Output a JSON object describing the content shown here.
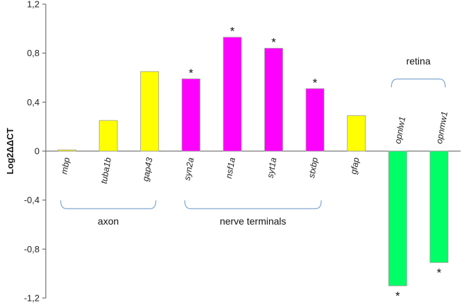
{
  "chart_data": {
    "type": "bar",
    "ylabel": "Log2ΔΔCT",
    "xlabel": "",
    "ylim": [
      -1.2,
      1.2
    ],
    "yticks": [
      -1.2,
      -0.8,
      -0.4,
      0,
      0.4,
      0.8,
      1.2
    ],
    "ytick_labels": [
      "-1,2",
      "-0,8",
      "-0,4",
      "0",
      "0,4",
      "0,8",
      "1,2"
    ],
    "grid": false,
    "categories": [
      "mbp",
      "tuba1b",
      "gap43",
      "syn2a",
      "nsf1a",
      "syt1a",
      "stxbp",
      "gfap",
      "opnlw1",
      "opnmw1"
    ],
    "values": [
      0.01,
      0.25,
      0.65,
      0.59,
      0.93,
      0.84,
      0.51,
      0.29,
      -1.1,
      -0.91
    ],
    "bar_colors": [
      "#FFFF00",
      "#FFFF00",
      "#FFFF00",
      "#FF00FF",
      "#FF00FF",
      "#FF00FF",
      "#FF00FF",
      "#FFFF00",
      "#00FF66",
      "#00FF66"
    ],
    "significant": [
      false,
      false,
      false,
      true,
      true,
      true,
      true,
      false,
      true,
      true
    ],
    "significance_marker": "*",
    "groups": [
      {
        "label": "axon",
        "start": 0,
        "end": 2,
        "bracket": "below"
      },
      {
        "label": "nerve terminals",
        "start": 3,
        "end": 6,
        "bracket": "below"
      },
      {
        "label": "retina",
        "start": 8,
        "end": 9,
        "bracket": "above"
      }
    ]
  }
}
